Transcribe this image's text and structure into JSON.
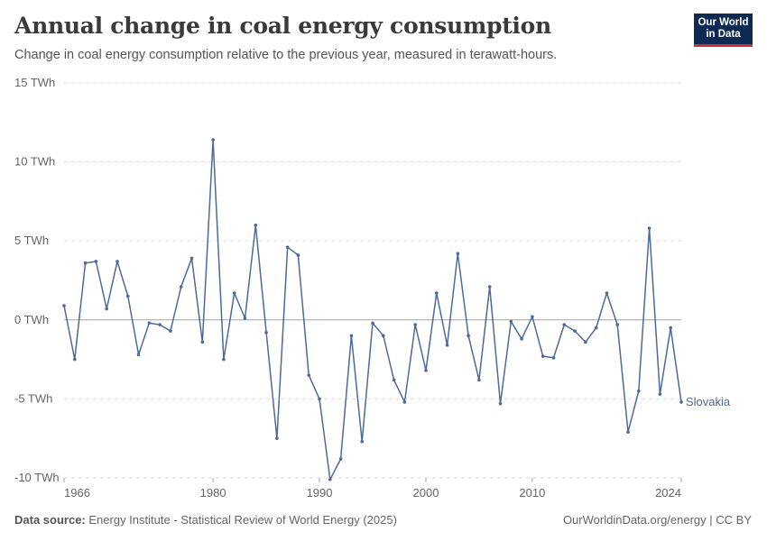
{
  "header": {
    "title": "Annual change in coal energy consumption",
    "subtitle": "Change in coal energy consumption relative to the previous year, measured in terawatt-hours.",
    "logo_line1": "Our World",
    "logo_line2": "in Data"
  },
  "footer": {
    "source_label": "Data source:",
    "source_text": "Energy Institute - Statistical Review of World Energy (2025)",
    "right_text": "OurWorldinData.org/energy | CC BY"
  },
  "colors": {
    "series": "#4c6a9c",
    "zero_line": "#a6a6a6",
    "grid": "#dddddd",
    "text": "#666666"
  },
  "chart_data": {
    "type": "line",
    "title": "Annual change in coal energy consumption",
    "xlabel": "",
    "ylabel": "",
    "xlim": [
      1966,
      2024
    ],
    "ylim": [
      -10,
      15
    ],
    "x_ticks": [
      1966,
      1980,
      1990,
      2000,
      2010,
      2024
    ],
    "y_ticks": [
      -10,
      -5,
      0,
      5,
      10,
      15
    ],
    "y_tick_labels": [
      "-10 TWh",
      "-5 TWh",
      "0 TWh",
      "5 TWh",
      "10 TWh",
      "15 TWh"
    ],
    "grid": "horizontal-dashed",
    "legend": "inline-right",
    "series": [
      {
        "name": "Slovakia",
        "x": [
          1966,
          1967,
          1968,
          1969,
          1970,
          1971,
          1972,
          1973,
          1974,
          1975,
          1976,
          1977,
          1978,
          1979,
          1980,
          1981,
          1982,
          1983,
          1984,
          1985,
          1986,
          1987,
          1988,
          1989,
          1990,
          1991,
          1992,
          1993,
          1994,
          1995,
          1996,
          1997,
          1998,
          1999,
          2000,
          2001,
          2002,
          2003,
          2004,
          2005,
          2006,
          2007,
          2008,
          2009,
          2010,
          2011,
          2012,
          2013,
          2014,
          2015,
          2016,
          2017,
          2018,
          2019,
          2020,
          2021,
          2022,
          2023,
          2024
        ],
        "values": [
          0.9,
          -2.5,
          3.6,
          3.7,
          0.7,
          3.7,
          1.5,
          -2.2,
          -0.2,
          -0.3,
          -0.7,
          2.1,
          3.9,
          -1.4,
          11.4,
          -2.5,
          1.7,
          0.1,
          6.0,
          -0.8,
          -7.5,
          4.6,
          4.1,
          -3.5,
          -5.0,
          -10.1,
          -8.8,
          -1.0,
          -7.7,
          -0.2,
          -1.0,
          -3.8,
          -5.2,
          -0.3,
          -3.2,
          1.7,
          -1.6,
          4.2,
          -1.0,
          -3.8,
          2.1,
          -5.3,
          -0.1,
          -1.2,
          0.2,
          -2.3,
          -2.4,
          -0.3,
          -0.7,
          -1.4,
          -0.5,
          1.7,
          -0.3,
          -7.1,
          -4.5,
          5.8,
          -4.7,
          -0.5,
          -5.2
        ]
      }
    ]
  }
}
